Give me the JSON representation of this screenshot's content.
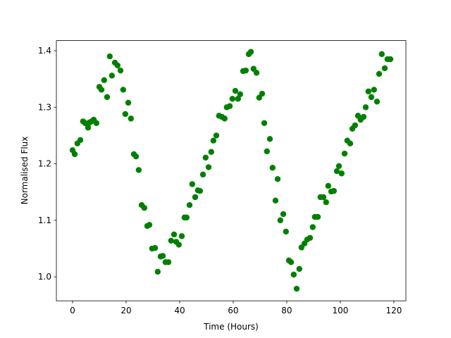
{
  "chart_data": {
    "type": "scatter",
    "xlabel": "Time (Hours)",
    "ylabel": "Normalised Flux",
    "color": "#008000",
    "x": [
      0,
      0.8,
      1.8,
      2.9,
      3.9,
      4.7,
      5.8,
      6.3,
      7.1,
      7.9,
      8.9,
      10.0,
      10.8,
      11.8,
      12.9,
      13.9,
      14.7,
      15.8,
      16.8,
      17.9,
      18.9,
      19.7,
      20.8,
      21.8,
      22.9,
      23.7,
      24.7,
      25.8,
      26.8,
      27.9,
      28.7,
      29.7,
      30.8,
      31.8,
      32.9,
      33.7,
      34.7,
      35.8,
      36.8,
      37.9,
      38.7,
      39.7,
      40.8,
      41.8,
      42.6,
      43.7,
      44.7,
      45.8,
      46.8,
      47.6,
      48.7,
      49.7,
      50.8,
      51.8,
      52.6,
      53.7,
      54.7,
      55.8,
      56.8,
      57.6,
      58.7,
      59.7,
      60.8,
      61.8,
      62.6,
      63.7,
      64.7,
      65.8,
      66.6,
      67.6,
      68.7,
      69.7,
      70.8,
      71.6,
      72.6,
      73.7,
      74.7,
      75.8,
      76.6,
      77.6,
      78.7,
      79.7,
      80.8,
      81.6,
      82.6,
      83.7,
      84.7,
      85.5,
      86.6,
      87.6,
      88.7,
      89.7,
      90.5,
      91.6,
      92.6,
      93.7,
      94.7,
      95.5,
      96.6,
      97.6,
      98.7,
      99.5,
      100.5,
      101.6,
      102.6,
      103.7,
      104.5,
      105.5,
      106.6,
      107.6,
      108.7,
      109.5,
      110.5,
      111.6,
      112.6,
      113.7,
      114.5,
      115.5,
      116.6,
      117.6,
      118.7
    ],
    "values": [
      1.224,
      1.217,
      1.236,
      1.242,
      1.275,
      1.272,
      1.264,
      1.273,
      1.275,
      1.278,
      1.272,
      1.336,
      1.331,
      1.348,
      1.318,
      1.39,
      1.356,
      1.379,
      1.374,
      1.365,
      1.331,
      1.288,
      1.308,
      1.28,
      1.217,
      1.213,
      1.189,
      1.127,
      1.122,
      1.09,
      1.092,
      1.05,
      1.051,
      1.009,
      1.036,
      1.037,
      1.026,
      1.026,
      1.064,
      1.075,
      1.062,
      1.057,
      1.072,
      1.105,
      1.105,
      1.127,
      1.164,
      1.141,
      1.153,
      1.152,
      1.181,
      1.211,
      1.194,
      1.221,
      1.241,
      1.25,
      1.285,
      1.283,
      1.28,
      1.3,
      1.302,
      1.315,
      1.329,
      1.315,
      1.323,
      1.364,
      1.365,
      1.394,
      1.398,
      1.368,
      1.361,
      1.317,
      1.324,
      1.272,
      1.222,
      1.244,
      1.193,
      1.135,
      1.173,
      1.1,
      1.111,
      1.08,
      1.029,
      1.026,
      1.004,
      0.979,
      1.014,
      1.052,
      1.059,
      1.066,
      1.069,
      1.088,
      1.106,
      1.106,
      1.141,
      1.141,
      1.132,
      1.161,
      1.151,
      1.152,
      1.187,
      1.196,
      1.183,
      1.218,
      1.241,
      1.236,
      1.262,
      1.268,
      1.285,
      1.278,
      1.283,
      1.3,
      1.328,
      1.318,
      1.331,
      1.31,
      1.359,
      1.394,
      1.369,
      1.385,
      1.385
    ],
    "xlim": [
      -6.05,
      124.5
    ],
    "ylim": [
      0.9576,
      1.418
    ],
    "xticks": [
      0,
      20,
      40,
      60,
      80,
      100,
      120
    ],
    "yticks": [
      {
        "value": 1,
        "label": "1.0"
      },
      1.1,
      1.2,
      1.3,
      1.4
    ]
  }
}
